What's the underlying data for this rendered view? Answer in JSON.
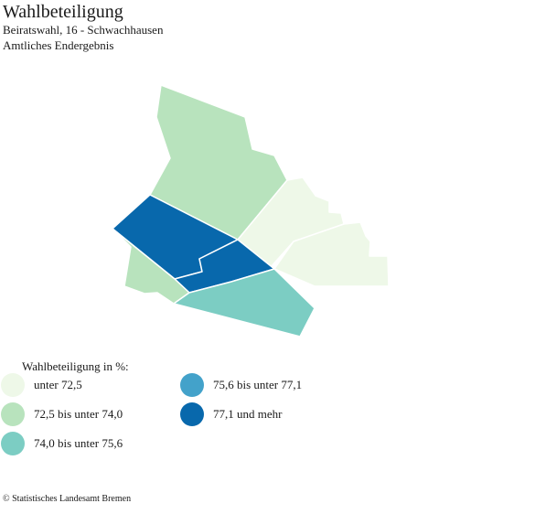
{
  "header": {
    "title": "Wahlbeteiligung",
    "subtitle": "Beiratswahl, 16 - Schwachhausen",
    "subtitle2": "Amtliches Endergebnis"
  },
  "legend": {
    "title": "Wahlbeteiligung in %:",
    "items": [
      {
        "label": "unter 72,5",
        "color": "#eef8e8"
      },
      {
        "label": "72,5 bis unter 74,0",
        "color": "#b8e3bd"
      },
      {
        "label": "74,0 bis unter 75,6",
        "color": "#7ccdc3"
      },
      {
        "label": "75,6 bis unter 77,1",
        "color": "#43a2ca"
      },
      {
        "label": "77,1 und mehr",
        "color": "#0868ac"
      }
    ]
  },
  "map": {
    "districts": [
      {
        "category": "72,5 bis unter 74,0",
        "color": "#b8e3bd"
      },
      {
        "category": "unter 72,5",
        "color": "#eef8e8"
      },
      {
        "category": "unter 72,5",
        "color": "#eef8e8"
      },
      {
        "category": "77,1 und mehr",
        "color": "#0868ac"
      },
      {
        "category": "77,1 und mehr",
        "color": "#0868ac"
      },
      {
        "category": "72,5 bis unter 74,0",
        "color": "#b8e3bd"
      },
      {
        "category": "74,0 bis unter 75,6",
        "color": "#7ccdc3"
      }
    ]
  },
  "footer": {
    "source": "© Statistisches Landesamt Bremen"
  }
}
